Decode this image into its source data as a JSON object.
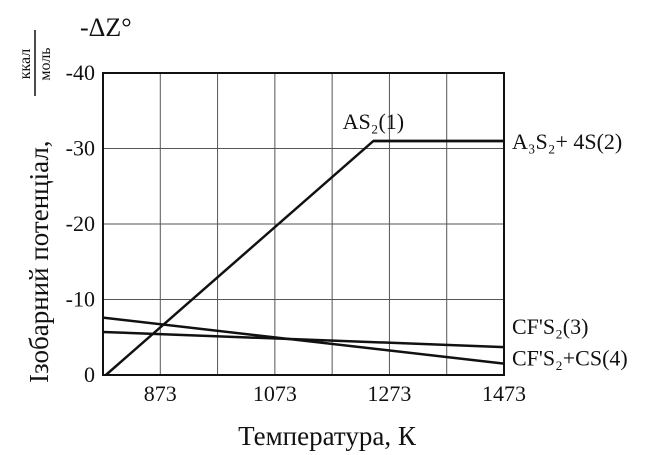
{
  "chart_data": {
    "type": "line",
    "title": "",
    "xlabel": "Температура, К",
    "ylabel": "Ізобарний потенціал,",
    "ylabel_unit_num": "ккал",
    "ylabel_unit_den": "моль",
    "y_quantity": "-ΔZ°",
    "xlim": [
      773,
      1473
    ],
    "ylim": [
      0,
      -40
    ],
    "x_ticks": [
      873,
      1073,
      1273,
      1473
    ],
    "x_tick_labels": [
      "873",
      "1073",
      "1273",
      "1473"
    ],
    "y_ticks": [
      0,
      -10,
      -20,
      -30,
      -40
    ],
    "y_tick_labels": [
      "0",
      "-10",
      "-20",
      "-30",
      "-40"
    ],
    "grid": true,
    "series": [
      {
        "name": "AS₂(1)",
        "x": [
          778,
          1245,
          1473
        ],
        "y": [
          0,
          -31,
          -31
        ]
      },
      {
        "name": "A₃S₂+ 4S(2)",
        "x": [
          1245,
          1473
        ],
        "y": [
          -31,
          -31
        ]
      },
      {
        "name": "CF'S₂(3)",
        "x": [
          773,
          1473
        ],
        "y": [
          -5.7,
          -3.7
        ]
      },
      {
        "name": "CF'S₂+CS(4)",
        "x": [
          773,
          1473
        ],
        "y": [
          -7.6,
          -1.5
        ]
      }
    ]
  }
}
